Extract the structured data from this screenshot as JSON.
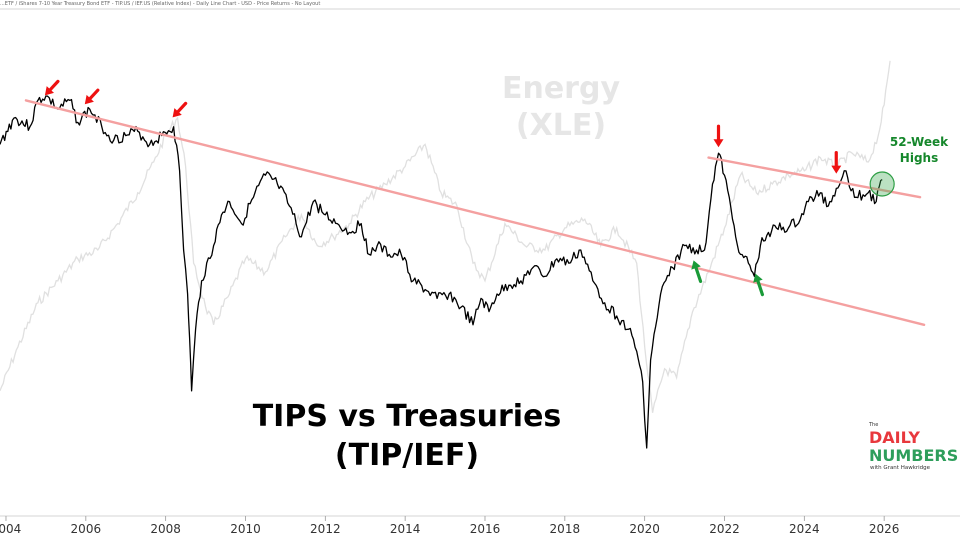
{
  "header": "...ETF / iShares 7-10 Year Treasury Bond ETF - TIP.US / IEF.US (Relative Index) - Daily Line Chart - USD - Price Returns - No Layout",
  "chart_data": {
    "type": "line",
    "title": "TIPS vs Treasuries",
    "subtitle": "(TIP/IEF)",
    "xlabel": "",
    "ylabel": "",
    "x_ticks": [
      "2004",
      "2006",
      "2008",
      "2010",
      "2012",
      "2014",
      "2016",
      "2018",
      "2020",
      "2022",
      "2024",
      "2026"
    ],
    "xlim": [
      2003.85,
      2027.9
    ],
    "ylim": [
      0,
      100
    ],
    "grid": false,
    "series": [
      {
        "name": "TIP/IEF",
        "color": "#000000",
        "x": [
          2003.85,
          2004.2,
          2004.6,
          2004.8,
          2005.0,
          2005.3,
          2005.6,
          2005.8,
          2006.1,
          2006.4,
          2006.7,
          2007.0,
          2007.3,
          2007.6,
          2007.9,
          2008.2,
          2008.35,
          2008.45,
          2008.55,
          2008.6,
          2008.65,
          2008.75,
          2008.9,
          2009.2,
          2009.4,
          2009.6,
          2009.9,
          2010.2,
          2010.5,
          2010.8,
          2011.1,
          2011.4,
          2011.7,
          2012.0,
          2012.3,
          2012.6,
          2012.9,
          2013.1,
          2013.3,
          2013.6,
          2013.9,
          2014.2,
          2014.5,
          2014.8,
          2015.1,
          2015.4,
          2015.7,
          2015.9,
          2016.1,
          2016.3,
          2016.6,
          2016.9,
          2017.2,
          2017.5,
          2017.8,
          2018.1,
          2018.4,
          2018.7,
          2019.0,
          2019.3,
          2019.6,
          2019.8,
          2019.95,
          2020.05,
          2020.15,
          2020.4,
          2020.7,
          2021.0,
          2021.3,
          2021.5,
          2021.7,
          2021.85,
          2022.0,
          2022.2,
          2022.4,
          2022.6,
          2022.75,
          2022.9,
          2023.1,
          2023.3,
          2023.6,
          2023.9,
          2024.1,
          2024.4,
          2024.6,
          2024.8,
          2025.0,
          2025.3,
          2025.6,
          2025.8,
          2025.95
        ],
        "values": [
          74,
          80,
          78,
          84,
          85,
          82,
          84,
          79,
          82,
          78,
          75,
          76,
          77,
          74,
          76,
          78,
          68,
          50,
          40,
          30,
          18,
          32,
          43,
          51,
          58,
          61,
          56,
          62,
          67,
          65,
          60,
          53,
          61,
          58,
          56,
          54,
          56,
          49,
          51,
          49,
          49,
          43,
          41,
          39,
          40,
          37,
          33,
          39,
          36,
          40,
          42,
          43,
          46,
          44,
          48,
          47,
          50,
          43,
          38,
          35,
          32,
          27,
          20,
          5,
          25,
          40,
          46,
          51,
          50,
          50,
          65,
          72,
          67,
          57,
          49,
          47,
          44,
          51,
          54,
          55,
          55,
          57,
          61,
          63,
          60,
          64,
          68,
          62,
          63,
          61,
          66
        ]
      },
      {
        "name": "Energy (XLE)",
        "color": "#e0e0e0",
        "x": [
          2003.85,
          2004.3,
          2004.8,
          2005.3,
          2005.8,
          2006.3,
          2006.8,
          2007.3,
          2007.7,
          2008.0,
          2008.3,
          2008.5,
          2008.7,
          2009.0,
          2009.2,
          2009.6,
          2010.0,
          2010.5,
          2011.0,
          2011.4,
          2011.8,
          2012.2,
          2012.6,
          2013.0,
          2013.5,
          2014.0,
          2014.5,
          2014.9,
          2015.3,
          2015.7,
          2016.0,
          2016.5,
          2017.0,
          2017.5,
          2018.0,
          2018.5,
          2018.9,
          2019.3,
          2019.8,
          2020.0,
          2020.2,
          2020.5,
          2020.8,
          2021.2,
          2021.6,
          2022.0,
          2022.4,
          2022.8,
          2023.2,
          2023.6,
          2024.0,
          2024.4,
          2024.8,
          2025.2,
          2025.6,
          2025.85,
          2026.0,
          2026.15
        ],
        "values": [
          18,
          28,
          38,
          43,
          48,
          50,
          56,
          63,
          70,
          76,
          80,
          69,
          47,
          37,
          33,
          40,
          48,
          45,
          53,
          58,
          51,
          53,
          56,
          61,
          65,
          69,
          74,
          63,
          60,
          47,
          43,
          56,
          51,
          50,
          55,
          57,
          51,
          55,
          47,
          28,
          13,
          23,
          21,
          36,
          45,
          55,
          67,
          63,
          65,
          67,
          68,
          71,
          69,
          72,
          70,
          76,
          83,
          93
        ]
      }
    ],
    "annotations": [
      {
        "text": "Energy",
        "kind": "label",
        "series": "Energy (XLE)"
      },
      {
        "text": "(XLE)",
        "kind": "label",
        "series": "Energy (XLE)"
      },
      {
        "text": "52-Week",
        "kind": "label"
      },
      {
        "text": "Highs",
        "kind": "label"
      }
    ],
    "trendlines": [
      {
        "name": "long-term downtrend",
        "x": [
          2004.5,
          2027.0
        ],
        "y": [
          84,
          33
        ],
        "color": "#f4a0a0"
      },
      {
        "name": "recent resistance",
        "x": [
          2021.6,
          2026.9
        ],
        "y": [
          71,
          62
        ],
        "color": "#f4a0a0"
      }
    ],
    "markers": [
      {
        "type": "red-arrow",
        "x": 2004.9,
        "y": 84
      },
      {
        "type": "red-arrow",
        "x": 2005.9,
        "y": 82
      },
      {
        "type": "red-arrow",
        "x": 2008.1,
        "y": 79
      },
      {
        "type": "red-arrow",
        "x": 2021.85,
        "y": 72
      },
      {
        "type": "red-arrow",
        "x": 2024.8,
        "y": 66
      },
      {
        "type": "green-arrow",
        "x": 2021.2,
        "y": 49
      },
      {
        "type": "green-arrow",
        "x": 2022.75,
        "y": 46
      },
      {
        "type": "green-circle",
        "x": 2025.95,
        "y": 65
      }
    ]
  },
  "logo": {
    "small": "The",
    "line1": "DAILY",
    "line2": "NUMBERS",
    "tagline": "with Grant Hawkridge",
    "color1": "#e8383d",
    "color2": "#2e9e5b"
  }
}
